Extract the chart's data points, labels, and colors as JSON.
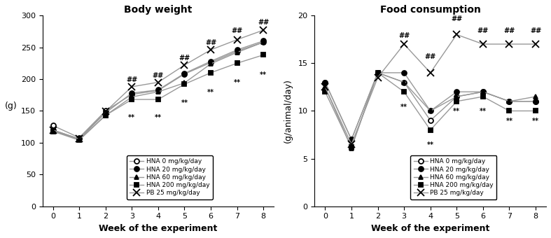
{
  "weeks": [
    0,
    1,
    2,
    3,
    4,
    5,
    6,
    7,
    8
  ],
  "body_weight": {
    "HNA_0": [
      127,
      108,
      150,
      176,
      182,
      208,
      226,
      244,
      258
    ],
    "HNA_20": [
      120,
      106,
      147,
      178,
      183,
      209,
      228,
      246,
      260
    ],
    "HNA_60": [
      119,
      105,
      143,
      172,
      180,
      194,
      224,
      242,
      258
    ],
    "HNA_200": [
      118,
      104,
      143,
      168,
      168,
      192,
      210,
      225,
      238
    ],
    "PB_25": [
      120,
      106,
      149,
      188,
      195,
      222,
      246,
      262,
      277
    ]
  },
  "food_consumption": {
    "HNA_0": [
      13.0,
      7.0,
      14.0,
      13.0,
      9.0,
      11.5,
      12.0,
      11.0,
      11.0
    ],
    "HNA_20": [
      13.0,
      7.0,
      14.0,
      14.0,
      10.0,
      12.0,
      12.0,
      11.0,
      11.0
    ],
    "HNA_60": [
      12.5,
      6.1,
      14.0,
      13.0,
      10.0,
      11.5,
      12.0,
      11.0,
      11.5
    ],
    "HNA_200": [
      12.0,
      6.2,
      14.0,
      12.0,
      8.0,
      11.0,
      11.5,
      10.0,
      10.0
    ],
    "PB_25": [
      12.5,
      6.5,
      13.5,
      17.0,
      14.0,
      18.0,
      17.0,
      17.0,
      17.0
    ]
  },
  "legend_labels": [
    "HNA 0 mg/kg/day",
    "HNA 20 mg/kg/day",
    "HNA 60 mg/kg/day",
    "HNA 200 mg/kg/day",
    "PB 25 mg/kg/day"
  ],
  "markers": [
    "o",
    "o",
    "^",
    "s",
    "x"
  ],
  "marker_fill": [
    "white",
    "black",
    "black",
    "black",
    "none"
  ],
  "line_colors": [
    "#999999",
    "#999999",
    "#999999",
    "#999999",
    "#999999"
  ],
  "marker_colors": [
    "black",
    "black",
    "black",
    "black",
    "black"
  ],
  "bw_title": "Body weight",
  "fc_title": "Food consumption",
  "bw_ylabel": "(g)",
  "fc_ylabel": "(g/animal/day)",
  "xlabel": "Week of the experiment",
  "bw_ylim": [
    0,
    300
  ],
  "fc_ylim": [
    0,
    20
  ],
  "bw_yticks": [
    0,
    50,
    100,
    150,
    200,
    250,
    300
  ],
  "fc_yticks": [
    0,
    5,
    10,
    15,
    20
  ],
  "bw_star_weeks": [
    3,
    4,
    5,
    6,
    7,
    8
  ],
  "bw_hash_weeks": [
    3,
    4,
    5,
    6,
    7,
    8
  ],
  "bw_star_y": [
    145,
    145,
    168,
    185,
    200,
    212
  ],
  "bw_hash_y": [
    193,
    200,
    228,
    252,
    270,
    284
  ],
  "fc_star_weeks": [
    3,
    4,
    5,
    6,
    7,
    8
  ],
  "fc_hash_weeks": [
    3,
    4,
    5,
    6,
    7,
    8
  ],
  "fc_star_y": [
    10.8,
    6.8,
    10.3,
    10.3,
    9.3,
    9.3
  ],
  "fc_hash_y": [
    17.5,
    15.3,
    19.3,
    18.0,
    18.0,
    18.0
  ]
}
